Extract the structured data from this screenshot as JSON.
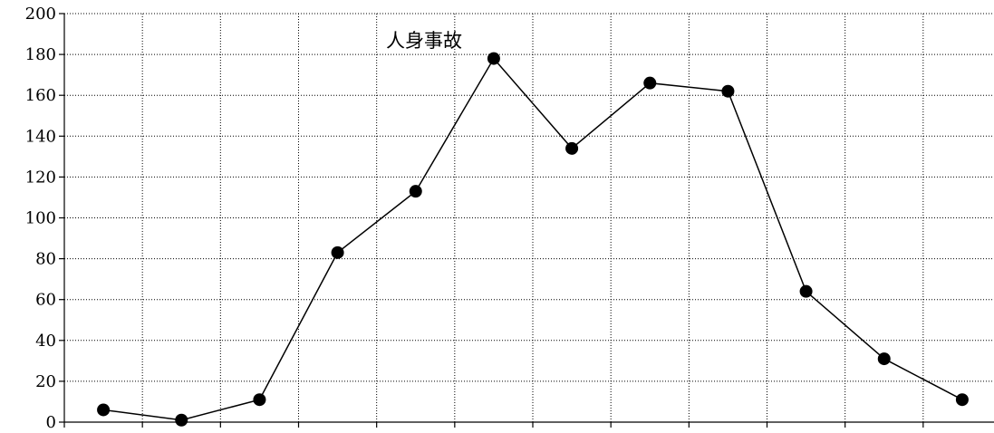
{
  "chart_data": {
    "type": "line",
    "title": "",
    "xlabel": "",
    "ylabel": "",
    "x": [
      1,
      2,
      3,
      4,
      5,
      6,
      7,
      8,
      9,
      10,
      11,
      12
    ],
    "ylim": [
      0,
      200
    ],
    "yticks": [
      0,
      20,
      40,
      60,
      80,
      100,
      120,
      140,
      160,
      180,
      200
    ],
    "x_tick_labels_shown": false,
    "grid": true,
    "grid_style": "dotted",
    "legend": "none",
    "series_label_text": "人身事故",
    "series": [
      {
        "name": "人身事故",
        "values": [
          6,
          1,
          11,
          83,
          113,
          178,
          134,
          166,
          162,
          64,
          31,
          11
        ],
        "color": "#000000",
        "marker": "filled-circle"
      }
    ]
  }
}
